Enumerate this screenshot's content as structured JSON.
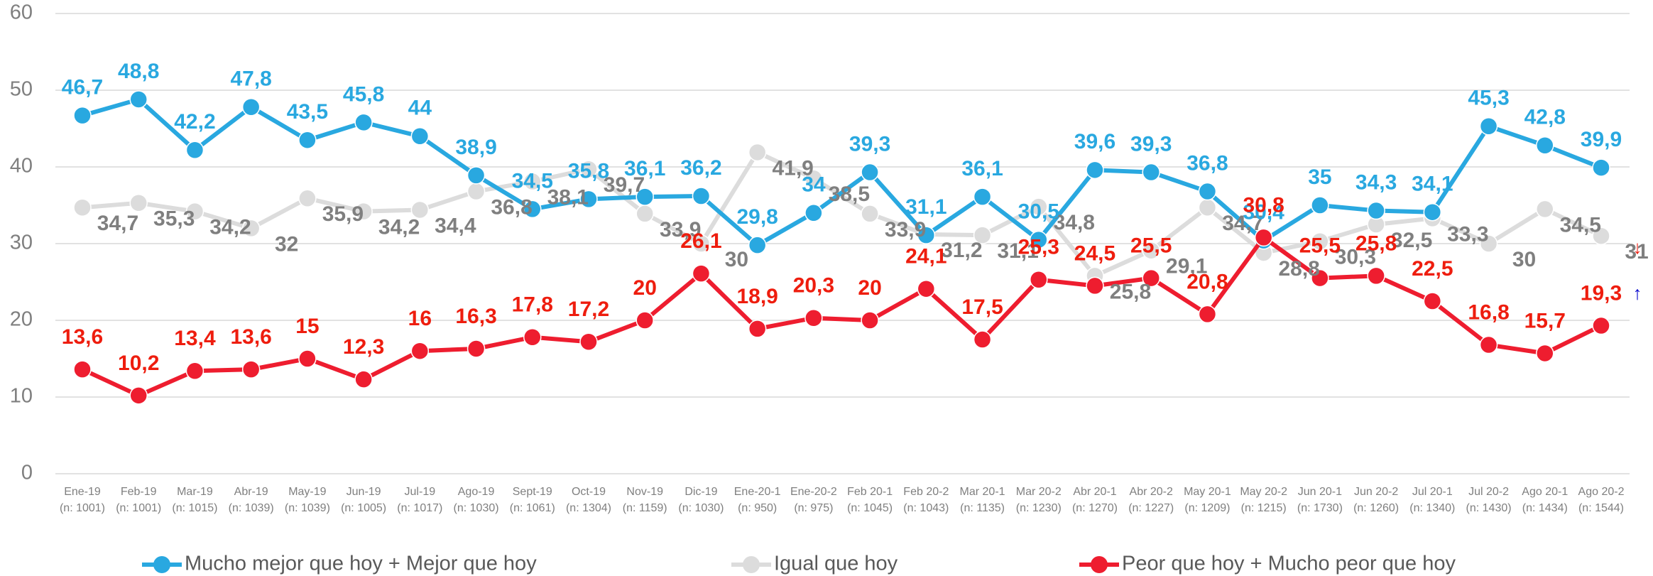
{
  "chart_data": {
    "type": "line",
    "categories": [
      "Ene-19",
      "Feb-19",
      "Mar-19",
      "Abr-19",
      "May-19",
      "Jun-19",
      "Jul-19",
      "Ago-19",
      "Sept-19",
      "Oct-19",
      "Nov-19",
      "Dic-19",
      "Ene-20-1",
      "Ene-20-2",
      "Feb 20-1",
      "Feb 20-2",
      "Mar 20-1",
      "Mar 20-2",
      "Abr 20-1",
      "Abr 20-2",
      "May 20-1",
      "May 20-2",
      "Jun 20-1",
      "Jun 20-2",
      "Jul 20-1",
      "Jul 20-2",
      "Ago 20-1",
      "Ago 20-2"
    ],
    "category_notes": [
      "(n: 1001)",
      "(n: 1001)",
      "(n: 1015)",
      "(n: 1039)",
      "(n: 1039)",
      "(n: 1005)",
      "(n: 1017)",
      "(n: 1030)",
      "(n: 1061)",
      "(n: 1304)",
      "(n: 1159)",
      "(n: 1030)",
      "(n: 950)",
      "(n: 975)",
      "(n: 1045)",
      "(n: 1043)",
      "(n: 1135)",
      "(n: 1230)",
      "(n: 1270)",
      "(n: 1227)",
      "(n: 1209)",
      "(n: 1215)",
      "(n: 1730)",
      "(n: 1260)",
      "(n: 1340)",
      "(n: 1430)",
      "(n: 1434)",
      "(n: 1544)"
    ],
    "series": [
      {
        "name": "Mucho mejor que hoy + Mejor que hoy",
        "color": "#29a8e0",
        "label_color": "#29a8e0",
        "values": [
          46.7,
          48.8,
          42.2,
          47.8,
          43.5,
          45.8,
          44,
          38.9,
          34.5,
          35.8,
          36.1,
          36.2,
          29.8,
          34,
          39.3,
          31.1,
          36.1,
          30.5,
          39.6,
          39.3,
          36.8,
          30.4,
          35,
          34.3,
          34.1,
          45.3,
          42.8,
          39.9
        ],
        "value_labels": [
          "46,7",
          "48,8",
          "42,2",
          "47,8",
          "43,5",
          "45,8",
          "44",
          "38,9",
          "34,5",
          "35,8",
          "36,1",
          "36,2",
          "29,8",
          "34",
          "39,3",
          "31,1",
          "36,1",
          "30,5",
          "39,6",
          "39,3",
          "36,8",
          "30,4",
          "35",
          "34,3",
          "34,1",
          "45,3",
          "42,8",
          "39,9"
        ]
      },
      {
        "name": "Igual que hoy",
        "color": "#dcdcdc",
        "label_color": "#7f7f7f",
        "values": [
          34.7,
          35.3,
          34.2,
          32,
          35.9,
          34.2,
          34.4,
          36.8,
          38.1,
          39.7,
          33.9,
          30,
          41.9,
          38.5,
          33.9,
          31.2,
          31.1,
          34.8,
          25.8,
          29.1,
          34.7,
          28.8,
          30.3,
          32.5,
          33.3,
          30,
          34.5,
          31
        ],
        "value_labels": [
          "34,7",
          "35,3",
          "34,2",
          "32",
          "35,9",
          "34,2",
          "34,4",
          "36,8",
          "38,1",
          "39,7",
          "33,9",
          "30",
          "41,9",
          "38,5",
          "33,9",
          "31,2",
          "31,1",
          "34,8",
          "25,8",
          "29,1",
          "34,7",
          "28,8",
          "30,3",
          "32,5",
          "33,3",
          "30",
          "34,5",
          "31"
        ]
      },
      {
        "name": "Peor que hoy + Mucho peor que hoy",
        "color": "#ee1d2f",
        "label_color": "#ee1d0e",
        "values": [
          13.6,
          10.2,
          13.4,
          13.6,
          15,
          12.3,
          16,
          16.3,
          17.8,
          17.2,
          20,
          26.1,
          18.9,
          20.3,
          20,
          24.1,
          17.5,
          25.3,
          24.5,
          25.5,
          20.8,
          30.8,
          25.5,
          25.8,
          22.5,
          16.8,
          15.7,
          19.3
        ],
        "value_labels": [
          "13,6",
          "10,2",
          "13,4",
          "13,6",
          "15",
          "12,3",
          "16",
          "16,3",
          "17,8",
          "17,2",
          "20",
          "26,1",
          "18,9",
          "20,3",
          "20",
          "24,1",
          "17,5",
          "25,3",
          "24,5",
          "25,5",
          "20,8",
          "30,8",
          "25,5",
          "25,8",
          "22,5",
          "16,8",
          "15,7",
          "19,3"
        ]
      }
    ],
    "annotations": [
      "↓",
      "↑"
    ],
    "ylim": [
      0,
      60
    ],
    "yticks": [
      0,
      10,
      20,
      30,
      40,
      50,
      60
    ],
    "grid": true,
    "legend": "bottom"
  }
}
